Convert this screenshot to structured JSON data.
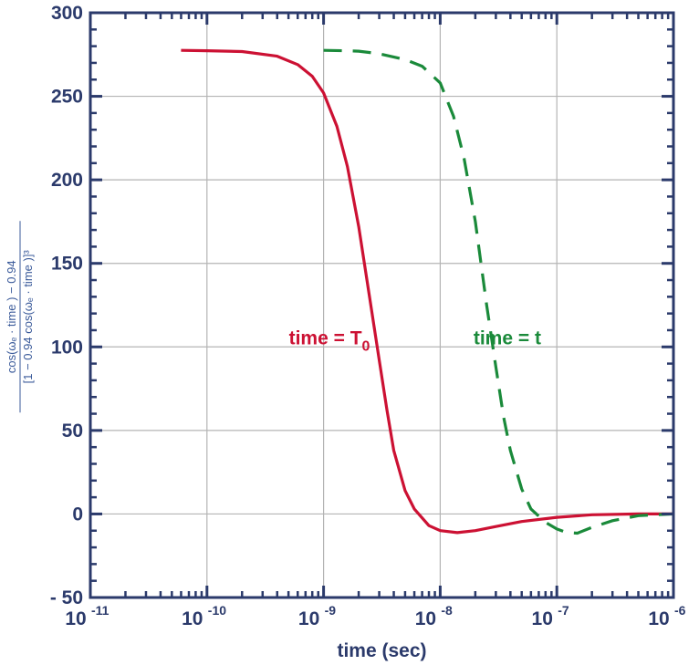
{
  "chart_data": {
    "type": "line",
    "xlabel": "time (sec)",
    "ylabel_numerator": "cos(ωₑ · time ) − 0.94",
    "ylabel_denominator": "[1 − 0.94 cos(ωₑ · time )]³",
    "x_scale": "log",
    "xlim": [
      1e-11,
      1e-06
    ],
    "ylim": [
      -50,
      300
    ],
    "x_ticks": [
      {
        "base": "10",
        "exp": "-11"
      },
      {
        "base": "10",
        "exp": "-10"
      },
      {
        "base": "10",
        "exp": "-9"
      },
      {
        "base": "10",
        "exp": "-8"
      },
      {
        "base": "10",
        "exp": "-7"
      },
      {
        "base": "10",
        "exp": "-6"
      }
    ],
    "x_tick_values": [
      1e-11,
      1e-10,
      1e-09,
      1e-08,
      1e-07,
      1e-06
    ],
    "y_ticks": [
      "300",
      "250",
      "200",
      "150",
      "100",
      "50",
      "0",
      "- 50"
    ],
    "y_tick_values": [
      300,
      250,
      200,
      150,
      100,
      50,
      0,
      -50
    ],
    "grid": true,
    "colors": {
      "axis": "#2b3a6b",
      "grid": "#b4b4b4",
      "series1": "#cc1133",
      "series2": "#1a8a3a"
    },
    "series": [
      {
        "style": "solid",
        "x": [
          6e-11,
          1e-10,
          2e-10,
          4e-10,
          6e-10,
          8e-10,
          1e-09,
          1.3e-09,
          1.6e-09,
          2e-09,
          2.5e-09,
          3e-09,
          3.5e-09,
          4e-09,
          5e-09,
          6e-09,
          8e-09,
          1e-08,
          1.4e-08,
          2e-08,
          3e-08,
          5e-08,
          1e-07,
          2e-07,
          5e-07,
          1e-06
        ],
        "values": [
          277.5,
          277.3,
          276.8,
          274,
          269,
          262,
          252,
          232,
          208,
          172,
          128,
          92,
          62,
          38,
          14,
          3,
          -7,
          -10,
          -11.2,
          -10,
          -7.5,
          -4.5,
          -2,
          -0.5,
          0,
          0
        ]
      },
      {
        "style": "dashed",
        "x": [
          1e-09,
          1.5e-09,
          2e-09,
          3e-09,
          5e-09,
          7e-09,
          1e-08,
          1.3e-08,
          1.6e-08,
          2e-08,
          2.5e-08,
          3e-08,
          3.5e-08,
          4e-08,
          5e-08,
          6e-08,
          8e-08,
          1e-07,
          1.2e-07,
          1.5e-07,
          2e-07,
          3e-07,
          5e-07,
          1e-06
        ],
        "values": [
          277.5,
          277.3,
          277,
          275.5,
          272,
          268,
          258,
          238,
          213,
          175,
          125,
          88,
          58,
          38,
          15,
          3,
          -5,
          -9,
          -11,
          -11.5,
          -8,
          -4,
          -1,
          0
        ]
      }
    ],
    "annotations": [
      {
        "text": "time = T",
        "sub": "0",
        "x": 1e-09,
        "y": 100,
        "series": 0
      },
      {
        "text": "time = t",
        "x": 2e-08,
        "y": 100,
        "series": 1
      }
    ]
  }
}
